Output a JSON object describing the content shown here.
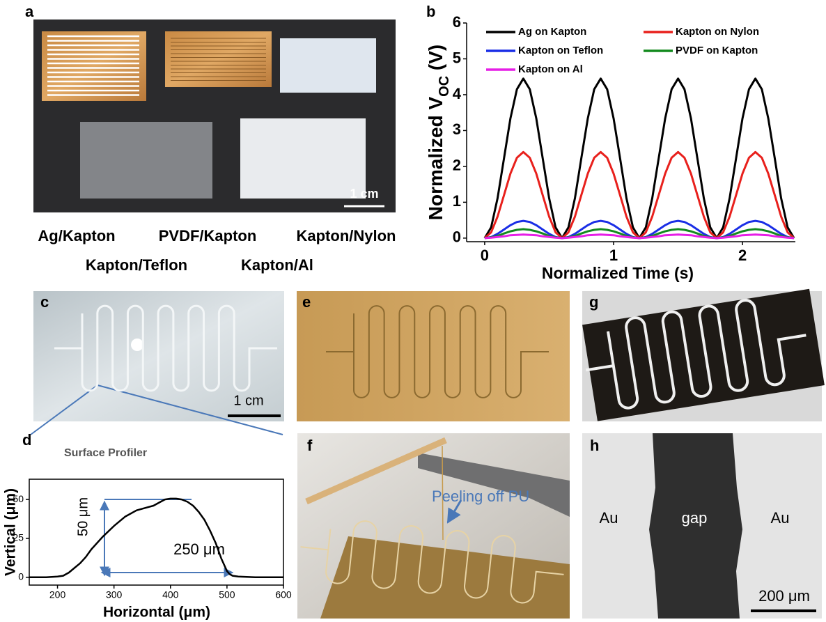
{
  "panel_labels": [
    "a",
    "b",
    "c",
    "d",
    "e",
    "f",
    "g",
    "h"
  ],
  "panel_a": {
    "scale_bar": "1 cm",
    "samples": [
      "Ag/Kapton",
      "PVDF/Kapton",
      "Kapton/Nylon",
      "Kapton/Teflon",
      "Kapton/Al"
    ]
  },
  "panel_c": {
    "scale_bar": "1 cm"
  },
  "panel_f": {
    "annotation": "Peeling off PU"
  },
  "panel_h": {
    "labels": [
      "Au",
      "gap",
      "Au"
    ],
    "scale_bar": "200 μm"
  },
  "chart_data": [
    {
      "type": "line",
      "y_label": {
        "main": "Normalized V",
        "sub": "OC",
        "unit": " (V)"
      },
      "x_label": "Normalized Time (s)",
      "xlim": [
        -0.14,
        2.41
      ],
      "xticks": [
        0,
        1,
        2
      ],
      "ylim": [
        -0.1,
        6
      ],
      "yticks": [
        0,
        1,
        2,
        3,
        4,
        5,
        6
      ],
      "x": [
        0,
        0.05,
        0.1,
        0.15,
        0.2,
        0.25,
        0.3,
        0.35,
        0.4,
        0.45,
        0.5,
        0.55,
        0.6,
        0.65,
        0.7,
        0.75,
        0.8,
        0.85,
        0.9,
        0.95,
        1,
        1.05,
        1.1,
        1.15,
        1.2,
        1.25,
        1.3,
        1.35,
        1.4,
        1.45,
        1.5,
        1.55,
        1.6,
        1.65,
        1.7,
        1.75,
        1.8,
        1.85,
        1.9,
        1.95,
        2,
        2.05,
        2.1,
        2.15,
        2.2,
        2.25,
        2.3,
        2.35,
        2.4
      ],
      "series": [
        {
          "name": "Ag on Kapton",
          "color": "#000000",
          "values": [
            0,
            0.3,
            1.11,
            2.23,
            3.34,
            4.15,
            4.45,
            4.15,
            3.34,
            2.23,
            1.11,
            0.3,
            0,
            0.3,
            1.11,
            2.23,
            3.34,
            4.15,
            4.45,
            4.15,
            3.34,
            2.23,
            1.11,
            0.3,
            0,
            0.3,
            1.11,
            2.23,
            3.34,
            4.15,
            4.45,
            4.15,
            3.34,
            2.23,
            1.11,
            0.3,
            0,
            0.3,
            1.11,
            2.23,
            3.34,
            4.15,
            4.45,
            4.15,
            3.34,
            2.23,
            1.11,
            0.3,
            0
          ]
        },
        {
          "name": "Kapton on Nylon",
          "color": "#e8201c",
          "values": [
            0,
            0.16,
            0.6,
            1.2,
            1.8,
            2.24,
            2.4,
            2.24,
            1.8,
            1.2,
            0.6,
            0.16,
            0,
            0.16,
            0.6,
            1.2,
            1.8,
            2.24,
            2.4,
            2.24,
            1.8,
            1.2,
            0.6,
            0.16,
            0,
            0.16,
            0.6,
            1.2,
            1.8,
            2.24,
            2.4,
            2.24,
            1.8,
            1.2,
            0.6,
            0.16,
            0,
            0.16,
            0.6,
            1.2,
            1.8,
            2.24,
            2.4,
            2.24,
            1.8,
            1.2,
            0.6,
            0.16,
            0
          ]
        },
        {
          "name": "Kapton on Teflon",
          "color": "#1a2ee6",
          "values": [
            0,
            0.03,
            0.12,
            0.24,
            0.36,
            0.45,
            0.48,
            0.45,
            0.36,
            0.24,
            0.12,
            0.03,
            0,
            0.03,
            0.12,
            0.24,
            0.36,
            0.45,
            0.48,
            0.45,
            0.36,
            0.24,
            0.12,
            0.03,
            0,
            0.03,
            0.12,
            0.24,
            0.36,
            0.45,
            0.48,
            0.45,
            0.36,
            0.24,
            0.12,
            0.03,
            0,
            0.03,
            0.12,
            0.24,
            0.36,
            0.45,
            0.48,
            0.45,
            0.36,
            0.24,
            0.12,
            0.03,
            0
          ]
        },
        {
          "name": "PVDF on Kapton",
          "color": "#138a1e",
          "values": [
            0,
            0.02,
            0.06,
            0.13,
            0.19,
            0.23,
            0.25,
            0.23,
            0.19,
            0.13,
            0.06,
            0.02,
            0,
            0.02,
            0.06,
            0.13,
            0.19,
            0.23,
            0.25,
            0.23,
            0.19,
            0.13,
            0.06,
            0.02,
            0,
            0.02,
            0.06,
            0.13,
            0.19,
            0.23,
            0.25,
            0.23,
            0.19,
            0.13,
            0.06,
            0.02,
            0,
            0.02,
            0.06,
            0.13,
            0.19,
            0.23,
            0.25,
            0.23,
            0.19,
            0.13,
            0.06,
            0.02,
            0
          ]
        },
        {
          "name": "Kapton on Al",
          "color": "#e61ee6",
          "values": [
            0,
            0.01,
            0.03,
            0.05,
            0.08,
            0.09,
            0.1,
            0.09,
            0.08,
            0.05,
            0.03,
            0.01,
            0,
            0.01,
            0.03,
            0.05,
            0.08,
            0.09,
            0.1,
            0.09,
            0.08,
            0.05,
            0.03,
            0.01,
            0,
            0.01,
            0.03,
            0.05,
            0.08,
            0.09,
            0.1,
            0.09,
            0.08,
            0.05,
            0.03,
            0.01,
            0,
            0.01,
            0.03,
            0.05,
            0.08,
            0.09,
            0.1,
            0.09,
            0.08,
            0.05,
            0.03,
            0.01,
            0
          ]
        }
      ]
    },
    {
      "type": "line",
      "y_label": "Vertical (μm)",
      "x_label": "Horizontal (μm)",
      "annotations": [
        "Surface Profiler",
        "50 μm",
        "250 μm"
      ],
      "xlim": [
        150,
        600
      ],
      "xticks": [
        200,
        300,
        400,
        500,
        600
      ],
      "ylim": [
        -5,
        63
      ],
      "yticks": [
        0,
        25,
        50
      ],
      "x": [
        150,
        180,
        200,
        210,
        215,
        220,
        230,
        240,
        250,
        260,
        280,
        300,
        320,
        340,
        360,
        370,
        380,
        390,
        400,
        410,
        420,
        430,
        440,
        450,
        460,
        470,
        480,
        490,
        500,
        505,
        510,
        520,
        550,
        600
      ],
      "series": [
        {
          "color": "#000000",
          "values": [
            0,
            0,
            0.5,
            1,
            2,
            3,
            6,
            9,
            13,
            18,
            26,
            33,
            39,
            43,
            45,
            46,
            48,
            50,
            50.5,
            50.5,
            50,
            48.5,
            46,
            42,
            37,
            30,
            22,
            12,
            4,
            2,
            1,
            0.5,
            0,
            0
          ]
        }
      ]
    }
  ]
}
